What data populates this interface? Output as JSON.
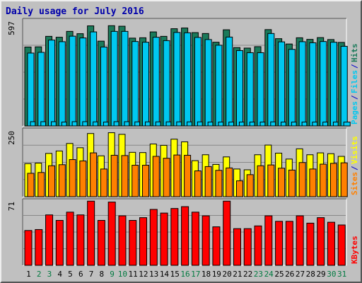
{
  "title": "Daily usage for July 2016",
  "colors": {
    "hits": "#1a7a5a",
    "files": "#00c8f0",
    "pages": "#00c8f0",
    "visits": "#ffff00",
    "sites": "#ff8000",
    "kbytes": "#ff0000",
    "day_weekday": "#000000",
    "day_weekend": "#007a40",
    "label_blue": "#0000cc"
  },
  "chart_data": [
    {
      "type": "bar",
      "ytick": "597",
      "ylim": [
        0,
        597
      ],
      "legend": [
        "Pages",
        "Files",
        "Hits"
      ],
      "categories": [
        "1",
        "2",
        "3",
        "4",
        "5",
        "6",
        "7",
        "8",
        "9",
        "10",
        "11",
        "12",
        "13",
        "14",
        "15",
        "16",
        "17",
        "18",
        "19",
        "20",
        "21",
        "22",
        "23",
        "24",
        "25",
        "26",
        "27",
        "28",
        "29",
        "30",
        "31"
      ],
      "series": [
        {
          "name": "Hits",
          "values": [
            444,
            445,
            504,
            499,
            532,
            519,
            563,
            477,
            564,
            561,
            494,
            496,
            529,
            504,
            547,
            551,
            525,
            520,
            471,
            541,
            441,
            438,
            446,
            542,
            491,
            461,
            496,
            487,
            497,
            486,
            470
          ]
        },
        {
          "name": "Files",
          "values": [
            410,
            414,
            483,
            474,
            505,
            495,
            529,
            444,
            532,
            532,
            475,
            471,
            499,
            480,
            526,
            524,
            498,
            486,
            454,
            500,
            424,
            412,
            412,
            520,
            473,
            431,
            474,
            468,
            475,
            471,
            448
          ]
        },
        {
          "name": "Pages",
          "values": [
            24,
            24,
            24,
            22,
            24,
            24,
            23,
            22,
            24,
            24,
            23,
            23,
            23,
            23,
            23,
            23,
            23,
            22,
            22,
            22,
            22,
            22,
            22,
            23,
            22,
            22,
            22,
            22,
            22,
            22,
            22
          ]
        }
      ]
    },
    {
      "type": "bar",
      "ytick": "250",
      "ylim": [
        0,
        250
      ],
      "legend": [
        "Sites",
        "Visits"
      ],
      "categories": [
        "1",
        "2",
        "3",
        "4",
        "5",
        "6",
        "7",
        "8",
        "9",
        "10",
        "11",
        "12",
        "13",
        "14",
        "15",
        "16",
        "17",
        "18",
        "19",
        "20",
        "21",
        "22",
        "23",
        "24",
        "25",
        "26",
        "27",
        "28",
        "29",
        "30",
        "31"
      ],
      "series": [
        {
          "name": "Visits",
          "values": [
            123,
            125,
            161,
            170,
            198,
            182,
            235,
            152,
            238,
            232,
            165,
            164,
            196,
            191,
            214,
            204,
            134,
            156,
            120,
            148,
            103,
            100,
            156,
            192,
            162,
            140,
            178,
            156,
            163,
            160,
            150
          ]
        },
        {
          "name": "Sites",
          "values": [
            87,
            90,
            115,
            119,
            138,
            133,
            163,
            103,
            154,
            153,
            117,
            117,
            150,
            143,
            155,
            154,
            96,
            112,
            98,
            107,
            59,
            82,
            115,
            118,
            106,
            99,
            127,
            103,
            121,
            124,
            126
          ]
        }
      ]
    },
    {
      "type": "bar",
      "ytick": "71",
      "ylim": [
        0,
        71
      ],
      "legend": [
        "KBytes"
      ],
      "categories": [
        "1",
        "2",
        "3",
        "4",
        "5",
        "6",
        "7",
        "8",
        "9",
        "10",
        "11",
        "12",
        "13",
        "14",
        "15",
        "16",
        "17",
        "18",
        "19",
        "20",
        "21",
        "22",
        "23",
        "24",
        "25",
        "26",
        "27",
        "28",
        "29",
        "30",
        "31"
      ],
      "series": [
        {
          "name": "KBytes",
          "values": [
            38,
            39,
            55,
            49,
            58,
            55,
            70,
            49,
            69,
            54,
            49,
            52,
            61,
            57,
            62,
            64,
            58,
            54,
            42,
            70,
            40,
            40,
            43,
            54,
            48,
            48,
            54,
            46,
            52,
            47,
            44
          ]
        }
      ]
    }
  ]
}
